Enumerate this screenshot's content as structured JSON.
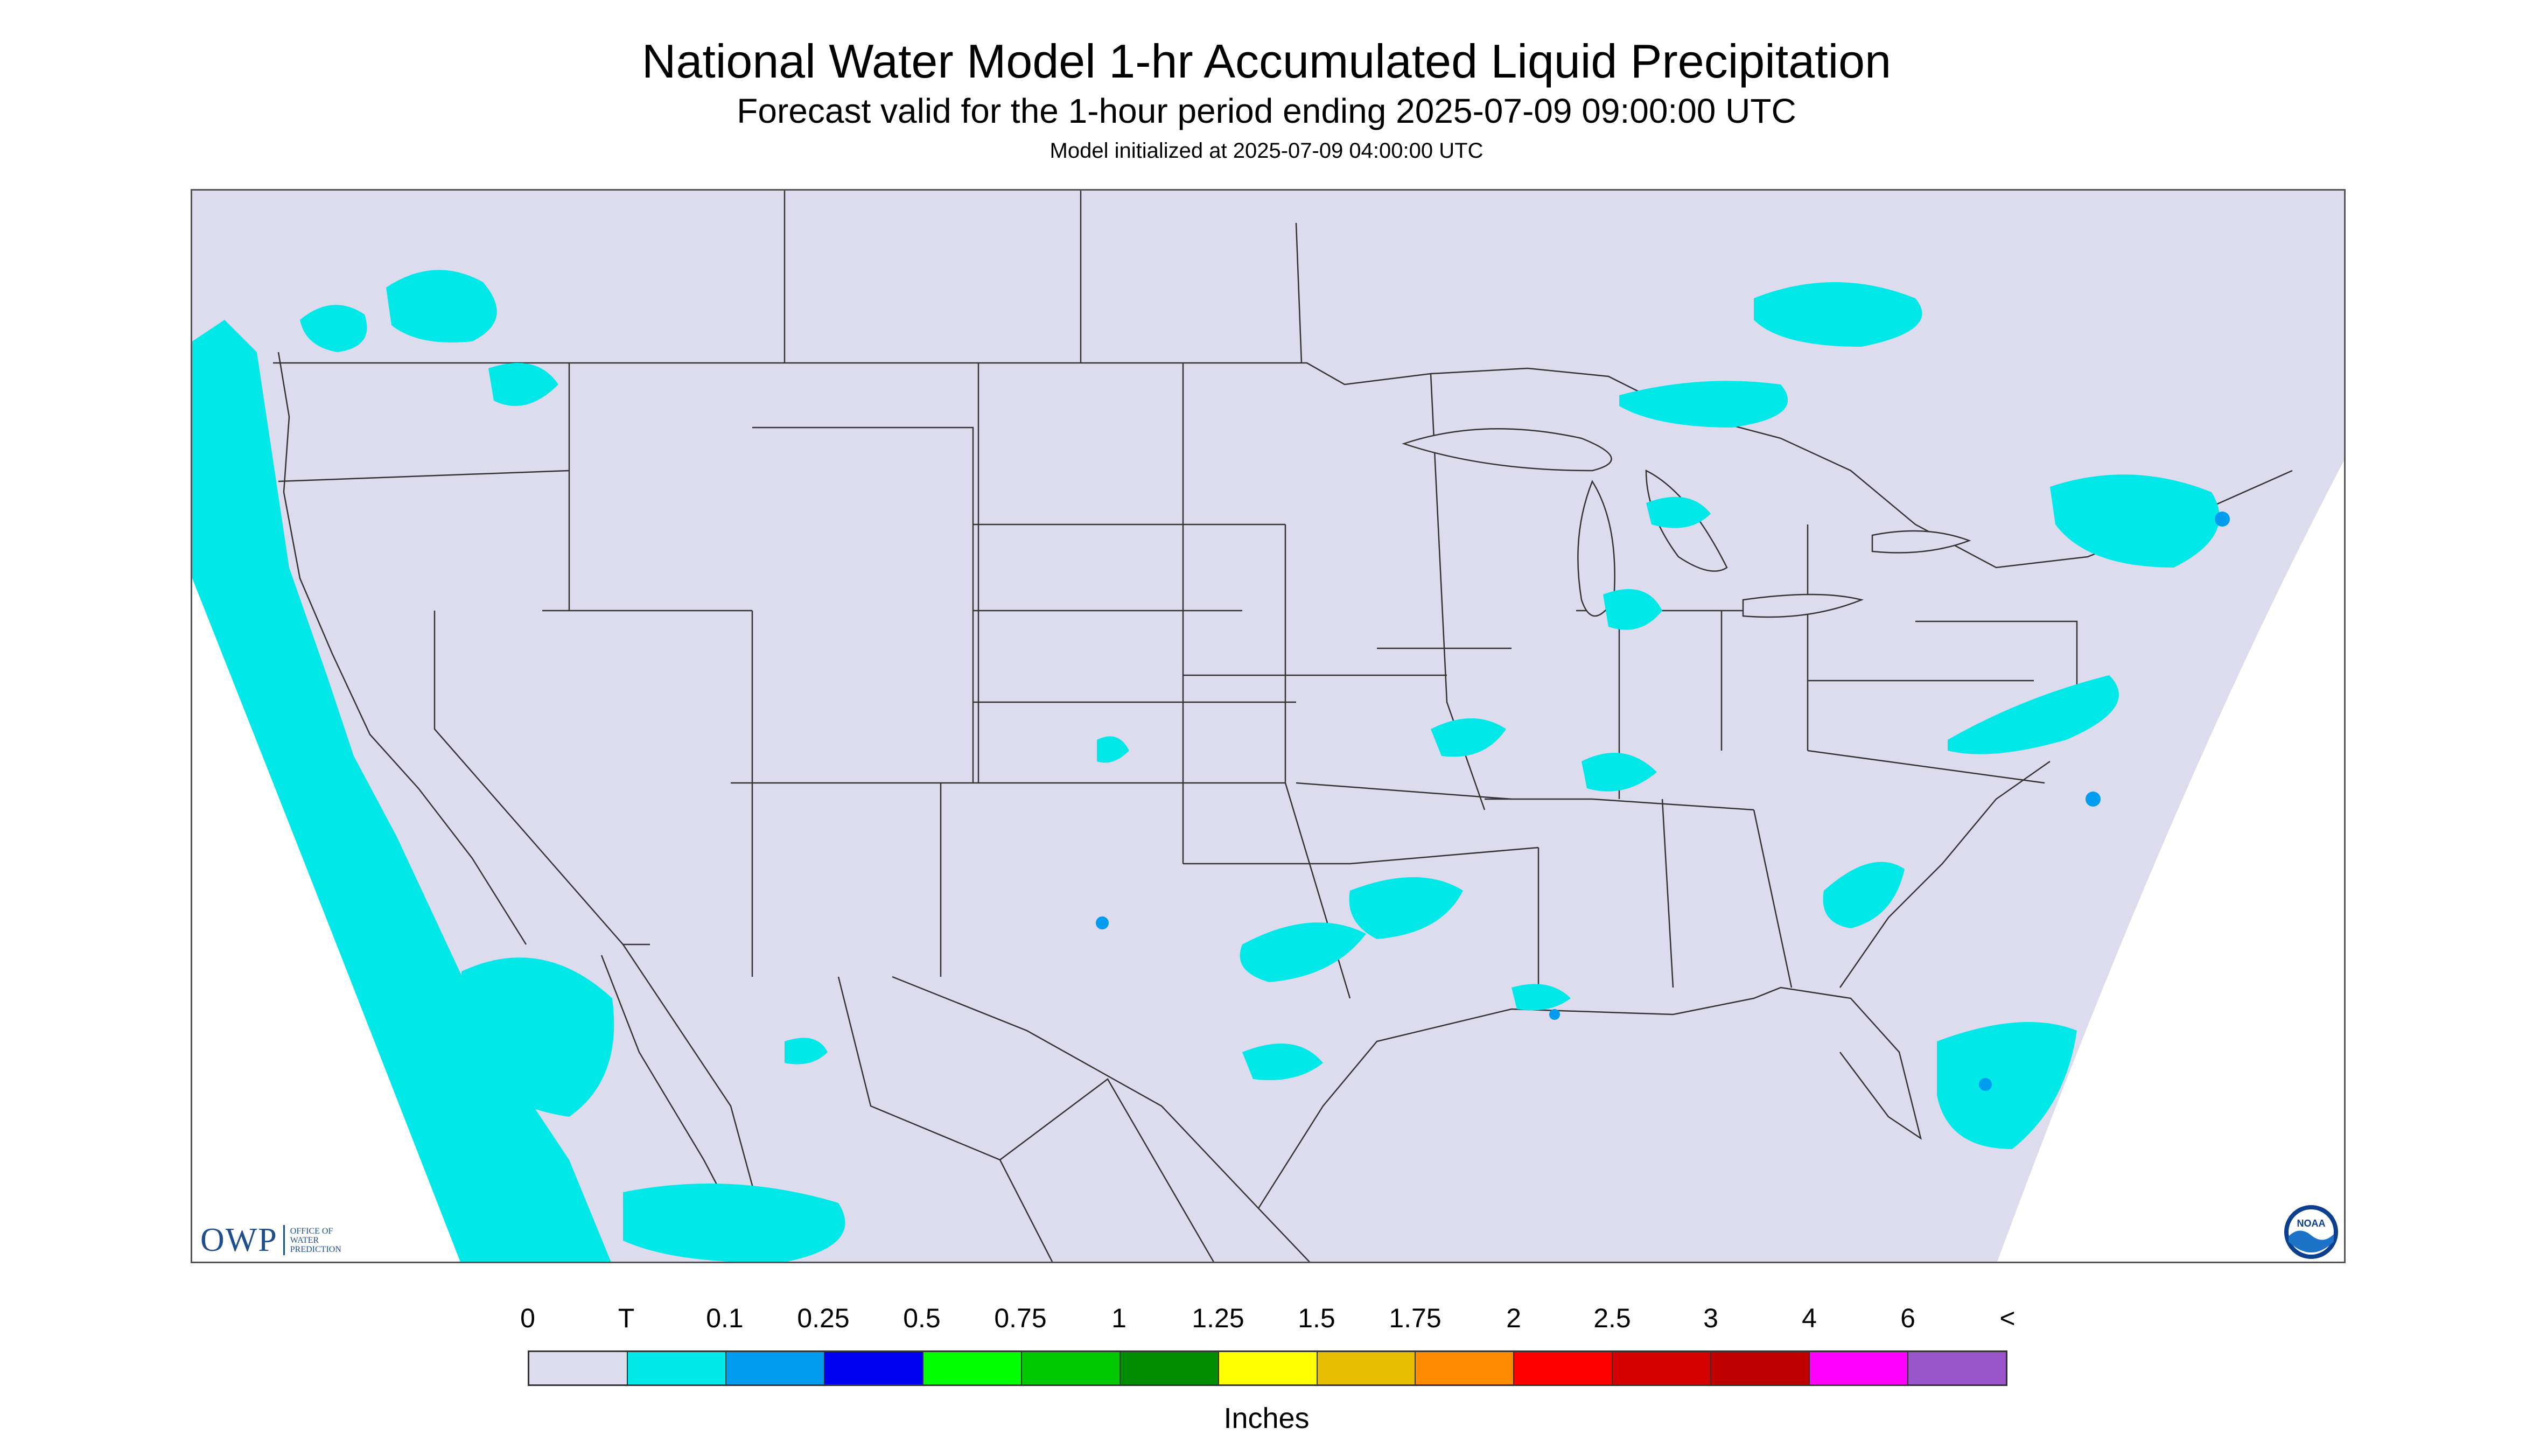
{
  "header": {
    "title": "National Water Model 1-hr Accumulated Liquid Precipitation",
    "subtitle": "Forecast valid for the 1-hour period ending 2025-07-09 09:00:00 UTC",
    "init_line": "Model initialized at 2025-07-09 04:00:00 UTC"
  },
  "logos": {
    "owp_text": "OWP",
    "owp_sub_1": "Office of",
    "owp_sub_2": "Water",
    "owp_sub_3": "Prediction",
    "noaa_text": "NOAA"
  },
  "legend": {
    "units": "Inches",
    "tick_labels": [
      "0",
      "T",
      "0.1",
      "0.25",
      "0.5",
      "0.75",
      "1",
      "1.25",
      "1.5",
      "1.75",
      "2",
      "2.5",
      "3",
      "4",
      "6",
      "<"
    ],
    "colors": [
      "#dcdcee",
      "#00e8e8",
      "#009cf0",
      "#0000f0",
      "#00ff00",
      "#00c800",
      "#008c00",
      "#ffff00",
      "#e6be00",
      "#ff8c00",
      "#ff0000",
      "#d60000",
      "#c00000",
      "#ff00ff",
      "#9955c9"
    ]
  },
  "map": {
    "background_color": "#dcdcee",
    "outside_domain_color": "#ffffff",
    "boundary_color": "#333333",
    "precip_trace_color": "#00e8e8",
    "precip_heavier_color": "#009cf0"
  }
}
